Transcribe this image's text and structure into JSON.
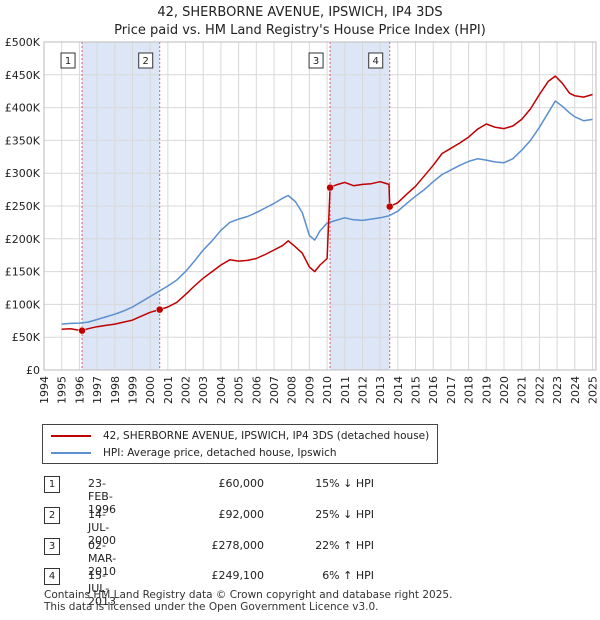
{
  "title_line1": "42, SHERBORNE AVENUE, IPSWICH, IP4 3DS",
  "title_line2": "Price paid vs. HM Land Registry's House Price Index (HPI)",
  "colors": {
    "property": "#c00000",
    "hpi": "#5b8fcf",
    "shade": "#dce6f7",
    "marker_line": "#e06060"
  },
  "chart_data": {
    "type": "line",
    "xlim": [
      1994,
      2025.2
    ],
    "ylim": [
      0,
      500000
    ],
    "x_ticks": [
      1994,
      1995,
      1996,
      1997,
      1998,
      1999,
      2000,
      2001,
      2002,
      2003,
      2004,
      2005,
      2006,
      2007,
      2008,
      2009,
      2010,
      2011,
      2012,
      2013,
      2014,
      2015,
      2016,
      2017,
      2018,
      2019,
      2020,
      2021,
      2022,
      2023,
      2024,
      2025
    ],
    "y_ticks": [
      {
        "value": 0,
        "label": "£0"
      },
      {
        "value": 50000,
        "label": "£50K"
      },
      {
        "value": 100000,
        "label": "£100K"
      },
      {
        "value": 150000,
        "label": "£150K"
      },
      {
        "value": 200000,
        "label": "£200K"
      },
      {
        "value": 250000,
        "label": "£250K"
      },
      {
        "value": 300000,
        "label": "£300K"
      },
      {
        "value": 350000,
        "label": "£350K"
      },
      {
        "value": 400000,
        "label": "£400K"
      },
      {
        "value": 450000,
        "label": "£450K"
      },
      {
        "value": 500000,
        "label": "£500K"
      }
    ],
    "shaded_ranges": [
      [
        1996.15,
        2000.54
      ],
      [
        2010.17,
        2013.54
      ]
    ],
    "series": [
      {
        "name": "42, SHERBORNE AVENUE, IPSWICH, IP4 3DS (detached house)",
        "key": "property",
        "points": [
          [
            1995.0,
            62000
          ],
          [
            1995.5,
            63000
          ],
          [
            1996.0,
            60500
          ],
          [
            1996.15,
            60000
          ],
          [
            1996.5,
            63000
          ],
          [
            1997.0,
            66000
          ],
          [
            1997.5,
            68000
          ],
          [
            1998.0,
            70000
          ],
          [
            1998.5,
            73000
          ],
          [
            1999.0,
            76000
          ],
          [
            1999.5,
            82000
          ],
          [
            2000.0,
            88000
          ],
          [
            2000.54,
            92000
          ],
          [
            2001.0,
            96000
          ],
          [
            2001.5,
            103000
          ],
          [
            2002.0,
            115000
          ],
          [
            2002.5,
            128000
          ],
          [
            2003.0,
            140000
          ],
          [
            2003.5,
            150000
          ],
          [
            2004.0,
            160000
          ],
          [
            2004.5,
            168000
          ],
          [
            2005.0,
            166000
          ],
          [
            2005.5,
            167000
          ],
          [
            2006.0,
            170000
          ],
          [
            2006.5,
            176000
          ],
          [
            2007.0,
            183000
          ],
          [
            2007.5,
            190000
          ],
          [
            2007.8,
            197000
          ],
          [
            2008.2,
            188000
          ],
          [
            2008.6,
            178000
          ],
          [
            2009.0,
            157000
          ],
          [
            2009.3,
            150000
          ],
          [
            2009.6,
            160000
          ],
          [
            2010.0,
            170000
          ],
          [
            2010.17,
            278000
          ],
          [
            2010.5,
            282000
          ],
          [
            2011.0,
            286000
          ],
          [
            2011.5,
            281000
          ],
          [
            2012.0,
            283000
          ],
          [
            2012.5,
            284000
          ],
          [
            2013.0,
            287000
          ],
          [
            2013.5,
            283000
          ],
          [
            2013.54,
            249100
          ],
          [
            2014.0,
            255000
          ],
          [
            2014.5,
            268000
          ],
          [
            2015.0,
            280000
          ],
          [
            2015.5,
            296000
          ],
          [
            2016.0,
            312000
          ],
          [
            2016.5,
            330000
          ],
          [
            2017.0,
            338000
          ],
          [
            2017.5,
            346000
          ],
          [
            2018.0,
            355000
          ],
          [
            2018.5,
            367000
          ],
          [
            2019.0,
            375000
          ],
          [
            2019.5,
            370000
          ],
          [
            2020.0,
            368000
          ],
          [
            2020.5,
            372000
          ],
          [
            2021.0,
            382000
          ],
          [
            2021.5,
            398000
          ],
          [
            2022.0,
            420000
          ],
          [
            2022.5,
            440000
          ],
          [
            2022.9,
            448000
          ],
          [
            2023.3,
            437000
          ],
          [
            2023.7,
            422000
          ],
          [
            2024.0,
            418000
          ],
          [
            2024.5,
            416000
          ],
          [
            2025.0,
            420000
          ]
        ]
      },
      {
        "name": "HPI: Average price, detached house, Ipswich",
        "key": "hpi",
        "points": [
          [
            1995.0,
            70000
          ],
          [
            1995.5,
            71000
          ],
          [
            1996.0,
            71500
          ],
          [
            1996.5,
            73000
          ],
          [
            1997.0,
            77000
          ],
          [
            1997.5,
            81000
          ],
          [
            1998.0,
            85000
          ],
          [
            1998.5,
            90000
          ],
          [
            1999.0,
            96000
          ],
          [
            1999.5,
            104000
          ],
          [
            2000.0,
            112000
          ],
          [
            2000.5,
            120000
          ],
          [
            2001.0,
            128000
          ],
          [
            2001.5,
            137000
          ],
          [
            2002.0,
            150000
          ],
          [
            2002.5,
            166000
          ],
          [
            2003.0,
            183000
          ],
          [
            2003.5,
            197000
          ],
          [
            2004.0,
            213000
          ],
          [
            2004.5,
            225000
          ],
          [
            2005.0,
            230000
          ],
          [
            2005.5,
            234000
          ],
          [
            2006.0,
            240000
          ],
          [
            2006.5,
            247000
          ],
          [
            2007.0,
            254000
          ],
          [
            2007.5,
            262000
          ],
          [
            2007.8,
            266000
          ],
          [
            2008.2,
            257000
          ],
          [
            2008.6,
            240000
          ],
          [
            2009.0,
            205000
          ],
          [
            2009.3,
            198000
          ],
          [
            2009.6,
            212000
          ],
          [
            2010.0,
            224000
          ],
          [
            2010.5,
            228000
          ],
          [
            2011.0,
            232000
          ],
          [
            2011.5,
            229000
          ],
          [
            2012.0,
            228000
          ],
          [
            2012.5,
            230000
          ],
          [
            2013.0,
            232000
          ],
          [
            2013.5,
            235000
          ],
          [
            2014.0,
            242000
          ],
          [
            2014.5,
            254000
          ],
          [
            2015.0,
            265000
          ],
          [
            2015.5,
            275000
          ],
          [
            2016.0,
            287000
          ],
          [
            2016.5,
            298000
          ],
          [
            2017.0,
            305000
          ],
          [
            2017.5,
            312000
          ],
          [
            2018.0,
            318000
          ],
          [
            2018.5,
            322000
          ],
          [
            2019.0,
            320000
          ],
          [
            2019.5,
            317000
          ],
          [
            2020.0,
            316000
          ],
          [
            2020.5,
            322000
          ],
          [
            2021.0,
            335000
          ],
          [
            2021.5,
            350000
          ],
          [
            2022.0,
            370000
          ],
          [
            2022.5,
            392000
          ],
          [
            2022.9,
            410000
          ],
          [
            2023.3,
            402000
          ],
          [
            2023.7,
            392000
          ],
          [
            2024.0,
            386000
          ],
          [
            2024.5,
            380000
          ],
          [
            2025.0,
            382000
          ]
        ]
      }
    ],
    "markers": [
      {
        "num": "1",
        "x": 1996.15,
        "y": 60000
      },
      {
        "num": "2",
        "x": 2000.54,
        "y": 92000
      },
      {
        "num": "3",
        "x": 2010.17,
        "y": 278000
      },
      {
        "num": "4",
        "x": 2013.54,
        "y": 249100
      }
    ]
  },
  "legend": {
    "property": "42, SHERBORNE AVENUE, IPSWICH, IP4 3DS (detached house)",
    "hpi": "HPI: Average price, detached house, Ipswich"
  },
  "transactions": [
    {
      "num": "1",
      "date": "23-FEB-1996",
      "price": "£60,000",
      "hpi": "15% ↓ HPI"
    },
    {
      "num": "2",
      "date": "14-JUL-2000",
      "price": "£92,000",
      "hpi": "25% ↓ HPI"
    },
    {
      "num": "3",
      "date": "02-MAR-2010",
      "price": "£278,000",
      "hpi": "22% ↑ HPI"
    },
    {
      "num": "4",
      "date": "15-JUL-2013",
      "price": "£249,100",
      "hpi": "6% ↑ HPI"
    }
  ],
  "footer_line1": "Contains HM Land Registry data © Crown copyright and database right 2025.",
  "footer_line2": "This data is licensed under the Open Government Licence v3.0."
}
